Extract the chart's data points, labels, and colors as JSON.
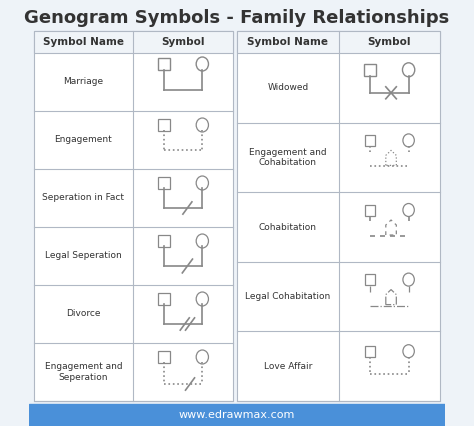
{
  "title": "Genogram Symbols - Family Relationships",
  "title_fontsize": 13,
  "bg_color": "#eef3f8",
  "table_bg": "#ffffff",
  "header_color": "#f0f4f8",
  "border_color": "#b0b8c4",
  "text_color": "#333333",
  "symbol_color": "#888888",
  "footer_bg": "#4a90d9",
  "footer_text": "www.edrawmax.com",
  "footer_text_color": "#ffffff",
  "left_rows": [
    "Marriage",
    "Engagement",
    "Seperation in Fact",
    "Legal Seperation",
    "Divorce",
    "Engagement and\nSeperation"
  ],
  "right_rows": [
    "Widowed",
    "Engagement and\nCohabitation",
    "Cohabitation",
    "Legal Cohabitation",
    "Love Affair"
  ]
}
